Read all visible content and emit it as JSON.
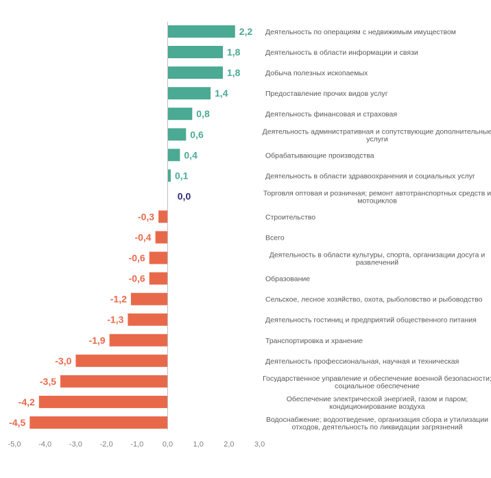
{
  "chart_data": {
    "type": "bar",
    "orientation": "horizontal",
    "categories": [
      "Деятельность по операциям с недвижимым имуществом",
      "Деятельность в области информации и связи",
      "Добыча полезных ископаемых",
      "Предоставление прочих видов услуг",
      "Деятельность финансовая и страховая",
      "Деятельность административная и сопутствующие дополнительные услуги",
      "Обрабатывающие производства",
      "Деятельность в области здравоохранения и социальных услуг",
      "Торговля оптовая и розничная; ремонт автотранспортных средств и мотоциклов",
      "Строительство",
      "Всего",
      "Деятельность в области культуры, спорта, организации досуга и развлечений",
      "Образование",
      "Сельское, лесное хозяйство, охота, рыболовство и рыбоводство",
      "Деятельность гостиниц и предприятий общественного питания",
      "Транспортировка и хранение",
      "Деятельность профессиональная, научная и техническая",
      "Государственное управление и обеспечение военной безопасности; социальное обеспечение",
      "Обеспечение электрической энергией, газом и паром; кондиционирование воздуха",
      "Водоснабжение; водоотведение, организация сбора и утилизации отходов, деятельность по ликвидации загрязнений"
    ],
    "category_lines": [
      [
        "Деятельность по операциям с недвижимым имуществом"
      ],
      [
        "Деятельность в области информации и связи"
      ],
      [
        "Добыча полезных ископаемых"
      ],
      [
        "Предоставление прочих видов услуг"
      ],
      [
        "Деятельность финансовая и страховая"
      ],
      [
        "Деятельность административная и сопутствующие дополнительные",
        "услуги"
      ],
      [
        "Обрабатывающие производства"
      ],
      [
        "Деятельность в области здравоохранения и социальных услуг"
      ],
      [
        "Торговля оптовая и розничная; ремонт автотранспортных средств и",
        "мотоциклов"
      ],
      [
        "Строительство"
      ],
      [
        "Всего"
      ],
      [
        "Деятельность в области культуры, спорта, организации досуга и",
        "развлечений"
      ],
      [
        "Образование"
      ],
      [
        "Сельское, лесное хозяйство, охота, рыболовство и рыбоводство"
      ],
      [
        "Деятельность гостиниц и предприятий общественного питания"
      ],
      [
        "Транспортировка и хранение"
      ],
      [
        "Деятельность профессиональная, научная и техническая"
      ],
      [
        "Государственное управление и обеспечение военной безопасности;",
        "социальное обеспечение"
      ],
      [
        "Обеспечение электрической энергией, газом и паром;",
        "кондиционирование воздуха"
      ],
      [
        "Водоснабжение; водоотведение, организация сбора и утилизации",
        "отходов, деятельность по ликвидации загрязнений"
      ]
    ],
    "values": [
      2.2,
      1.8,
      1.8,
      1.4,
      0.8,
      0.6,
      0.4,
      0.1,
      0.0,
      -0.3,
      -0.4,
      -0.6,
      -0.6,
      -1.2,
      -1.3,
      -1.9,
      -3.0,
      -3.5,
      -4.2,
      -4.5
    ],
    "value_labels": [
      "2,2",
      "1,8",
      "1,8",
      "1,4",
      "0,8",
      "0,6",
      "0,4",
      "0,1",
      "0,0",
      "-0,3",
      "-0,4",
      "-0,6",
      "-0,6",
      "-1,2",
      "-1,3",
      "-1,9",
      "-3,0",
      "-3,5",
      "-4,2",
      "-4,5"
    ],
    "x_ticks": [
      -5,
      -4,
      -3,
      -2,
      -1,
      0,
      1,
      2,
      3
    ],
    "x_tick_labels": [
      "-5,0",
      "-4,0",
      "-3,0",
      "-2,0",
      "-1,0",
      "0,0",
      "1,0",
      "2,0",
      "3,0"
    ],
    "xlim": [
      -5,
      3
    ],
    "grid": false,
    "legend": "none",
    "colors": {
      "positive": "#4aaa94",
      "negative": "#e8694a",
      "zero_label": "#2e2a7a",
      "axis": "#bfbfbf"
    }
  }
}
